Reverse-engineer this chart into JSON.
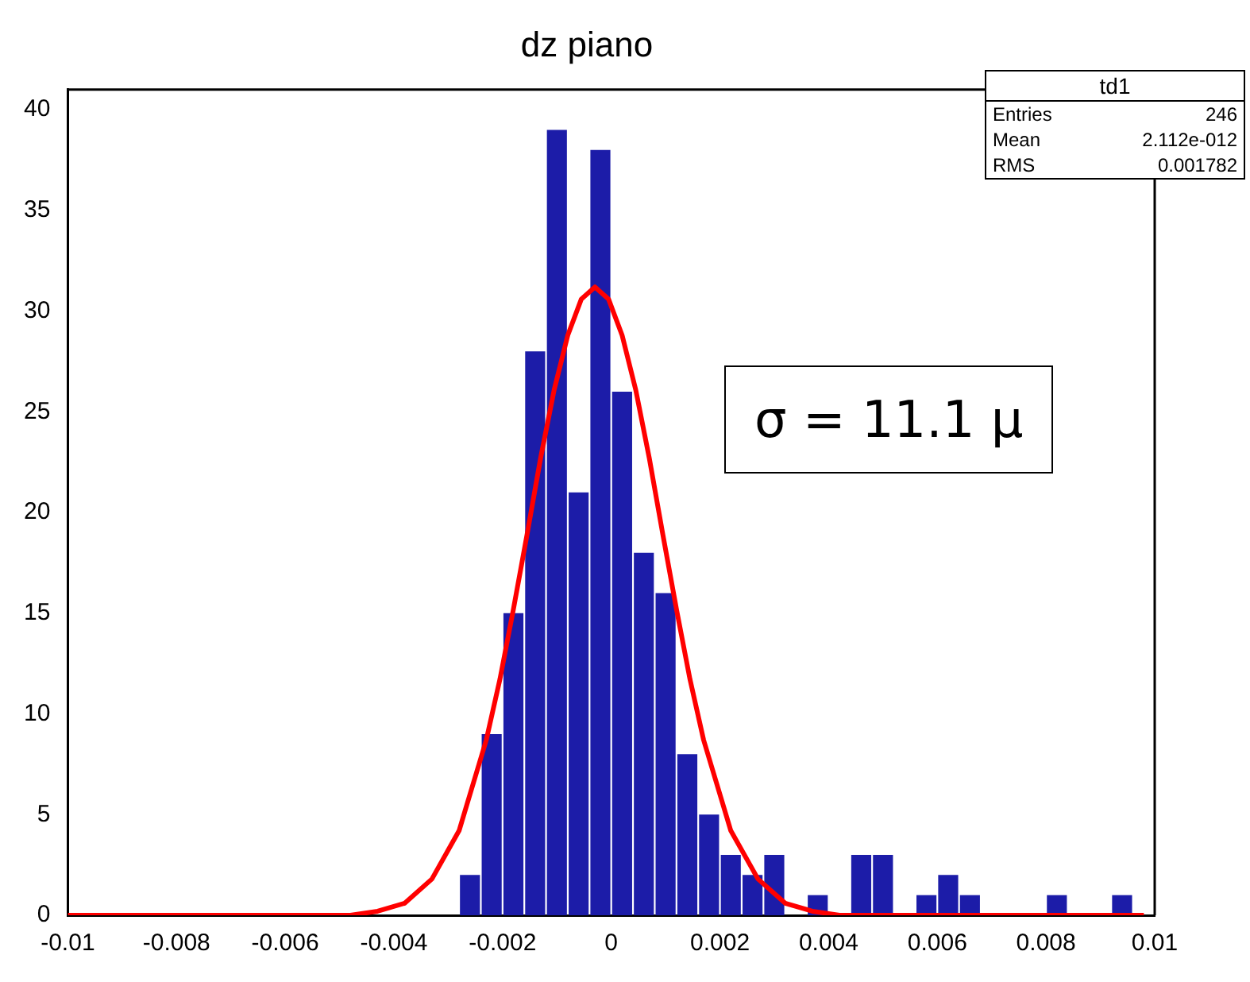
{
  "chart_data": {
    "type": "histogram",
    "title": "dz piano",
    "color": "#1c1ca8",
    "bins": [
      -0.01,
      -0.0096,
      -0.0092,
      -0.0088,
      -0.0084,
      -0.008,
      -0.0076,
      -0.0072,
      -0.0068,
      -0.0064,
      -0.006,
      -0.0056,
      -0.0052,
      -0.0048,
      -0.0044,
      -0.004,
      -0.0036,
      -0.0032,
      -0.0028,
      -0.0024,
      -0.002,
      -0.0016,
      -0.0012,
      -0.0008,
      -0.0004,
      0,
      0.0004,
      0.0008,
      0.0012,
      0.0016,
      0.002,
      0.0024,
      0.0028,
      0.0032,
      0.0036,
      0.004,
      0.0044,
      0.0048,
      0.0052,
      0.0056,
      0.006,
      0.0064,
      0.0068,
      0.0072,
      0.0076,
      0.008,
      0.0084,
      0.0088,
      0.0092,
      0.0096,
      0.01
    ],
    "values": [
      0,
      0,
      0,
      0,
      0,
      0,
      0,
      0,
      0,
      0,
      0,
      0,
      0,
      0,
      0,
      0,
      0,
      0,
      2,
      9,
      15,
      28,
      39,
      21,
      38,
      26,
      18,
      16,
      8,
      5,
      3,
      2,
      3,
      0,
      1,
      0,
      3,
      3,
      0,
      1,
      2,
      1,
      0,
      0,
      0,
      1,
      0,
      0,
      1,
      0
    ],
    "series": [
      {
        "type": "line",
        "color": "#ff0000",
        "x": [
          -0.01,
          -0.0048,
          -0.0043,
          -0.0038,
          -0.0033,
          -0.0028,
          -0.0023,
          -0.00205,
          -0.0018,
          -0.00155,
          -0.0013,
          -0.00105,
          -0.0008,
          -0.00055,
          -0.0003,
          -5e-05,
          0.0002,
          0.00045,
          0.0007,
          0.00095,
          0.0012,
          0.00145,
          0.0017,
          0.0022,
          0.0027,
          0.0032,
          0.0037,
          0.0042,
          0.0098
        ],
        "values": [
          0,
          0,
          0.2,
          0.6,
          1.8,
          4.2,
          8.7,
          11.7,
          15.2,
          18.9,
          22.7,
          26.1,
          28.8,
          30.6,
          31.2,
          30.6,
          28.8,
          26.1,
          22.7,
          18.9,
          15.2,
          11.7,
          8.7,
          4.2,
          1.8,
          0.6,
          0.2,
          0,
          0
        ]
      }
    ],
    "xlim": [
      -0.01,
      0.01
    ],
    "xticks": [
      -0.01,
      -0.008,
      -0.006,
      -0.004,
      -0.002,
      0,
      0.002,
      0.004,
      0.006,
      0.008,
      0.01
    ],
    "ylim": [
      0,
      41
    ],
    "yticks": [
      0,
      5,
      10,
      15,
      20,
      25,
      30,
      35,
      40
    ],
    "grid": false,
    "legend": false,
    "annotations": [
      "td1",
      "Entries",
      "246",
      "Mean",
      "2.112e-012",
      "RMS",
      "0.001782",
      "σ = 11.1 μ"
    ]
  }
}
